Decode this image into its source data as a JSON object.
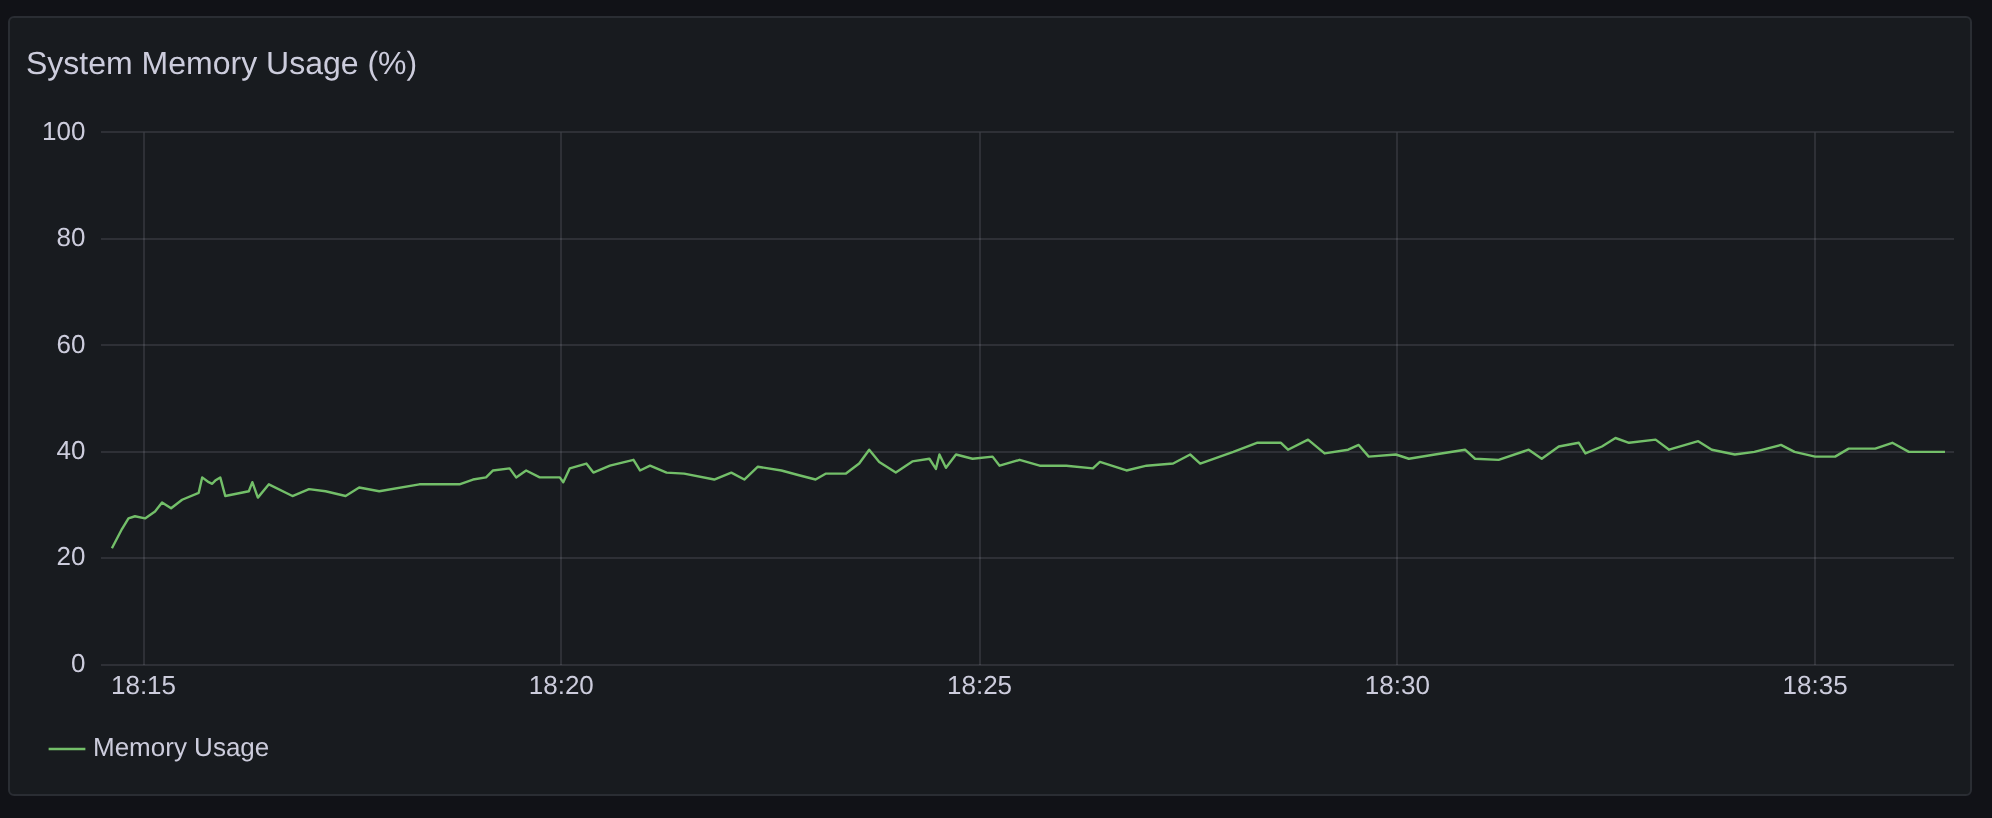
{
  "chart_data": {
    "type": "line",
    "title": "System Memory Usage (%)",
    "x": [
      18.2437,
      18.2457,
      18.247,
      18.2483,
      18.2503,
      18.2523,
      18.2537,
      18.2555,
      18.2577,
      18.261,
      18.2617,
      18.263,
      18.2637,
      18.2643,
      18.2653,
      18.2663,
      18.271,
      18.2717,
      18.2728,
      18.275,
      18.2797,
      18.283,
      18.2863,
      18.2903,
      18.293,
      18.297,
      18.305,
      18.313,
      18.3157,
      18.3183,
      18.3197,
      18.323,
      18.3243,
      18.3263,
      18.329,
      18.333,
      18.3337,
      18.335,
      18.3383,
      18.3397,
      18.343,
      18.3477,
      18.349,
      18.351,
      18.3543,
      18.3578,
      18.3638,
      18.3672,
      18.3698,
      18.3725,
      18.3772,
      18.3807,
      18.384,
      18.386,
      18.39,
      18.3927,
      18.3947,
      18.3967,
      18.4,
      18.4033,
      18.4067,
      18.408,
      18.4087,
      18.41,
      18.412,
      18.4153,
      18.4193,
      18.4207,
      18.4247,
      18.4287,
      18.434,
      18.4393,
      18.4407,
      18.446,
      18.45,
      18.4553,
      18.4587,
      18.4607,
      18.4673,
      18.472,
      18.4768,
      18.4782,
      18.4822,
      18.4855,
      18.4902,
      18.4923,
      18.4943,
      18.4997,
      18.5023,
      18.5075,
      18.5135,
      18.5155,
      18.5202,
      18.5262,
      18.5288,
      18.5322,
      18.5362,
      18.5375,
      18.5408,
      18.5435,
      18.5462,
      18.5515,
      18.5542,
      18.56,
      18.5627,
      18.5673,
      18.5712,
      18.5765,
      18.5792,
      18.5833,
      18.5873,
      18.59,
      18.5953,
      18.5987,
      18.602,
      18.6092
    ],
    "series": [
      {
        "name": "Memory Usage",
        "color": "#73bf69",
        "values": [
          21.9,
          25.5,
          27.5,
          27.9,
          27.5,
          28.8,
          30.5,
          29.4,
          31,
          32.3,
          35.2,
          34.3,
          34,
          34.6,
          35.2,
          31.7,
          32.6,
          34.3,
          31.4,
          33.9,
          31.7,
          33,
          32.6,
          31.7,
          33.3,
          32.6,
          33.9,
          33.9,
          34.8,
          35.2,
          36.5,
          36.9,
          35.2,
          36.5,
          35.2,
          35.2,
          34.3,
          36.9,
          37.8,
          36.1,
          37.4,
          38.5,
          36.5,
          37.4,
          36.1,
          35.9,
          34.8,
          36.1,
          34.8,
          37.2,
          36.5,
          35.6,
          34.8,
          35.9,
          35.9,
          37.8,
          40.4,
          38.1,
          36.1,
          38.2,
          38.7,
          36.8,
          39.5,
          37,
          39.5,
          38.7,
          39.1,
          37.4,
          38.5,
          37.4,
          37.4,
          36.9,
          38.1,
          36.5,
          37.4,
          37.8,
          39.5,
          37.8,
          40,
          41.7,
          41.7,
          40.4,
          42.3,
          39.7,
          40.4,
          41.3,
          39.1,
          39.5,
          38.7,
          39.5,
          40.4,
          38.7,
          38.5,
          40.4,
          38.7,
          41,
          41.7,
          39.7,
          41,
          42.6,
          41.7,
          42.3,
          40.4,
          42,
          40.4,
          39.5,
          40,
          41.3,
          40,
          39.1,
          39.1,
          40.6,
          40.6,
          41.7,
          40,
          40
        ]
      }
    ],
    "xlim": [
      18.2416,
      18.611
    ],
    "xticks": [
      {
        "value": 18.25,
        "label": "18:15"
      },
      {
        "value": 18.3333,
        "label": "18:20"
      },
      {
        "value": 18.4167,
        "label": "18:25"
      },
      {
        "value": 18.5,
        "label": "18:30"
      },
      {
        "value": 18.5833,
        "label": "18:35"
      }
    ],
    "ylim": [
      0,
      100
    ],
    "yticks": [
      0,
      20,
      40,
      60,
      80,
      100
    ],
    "grid": true,
    "legend": "bottom left",
    "marker": "none",
    "line_style": "solid"
  }
}
